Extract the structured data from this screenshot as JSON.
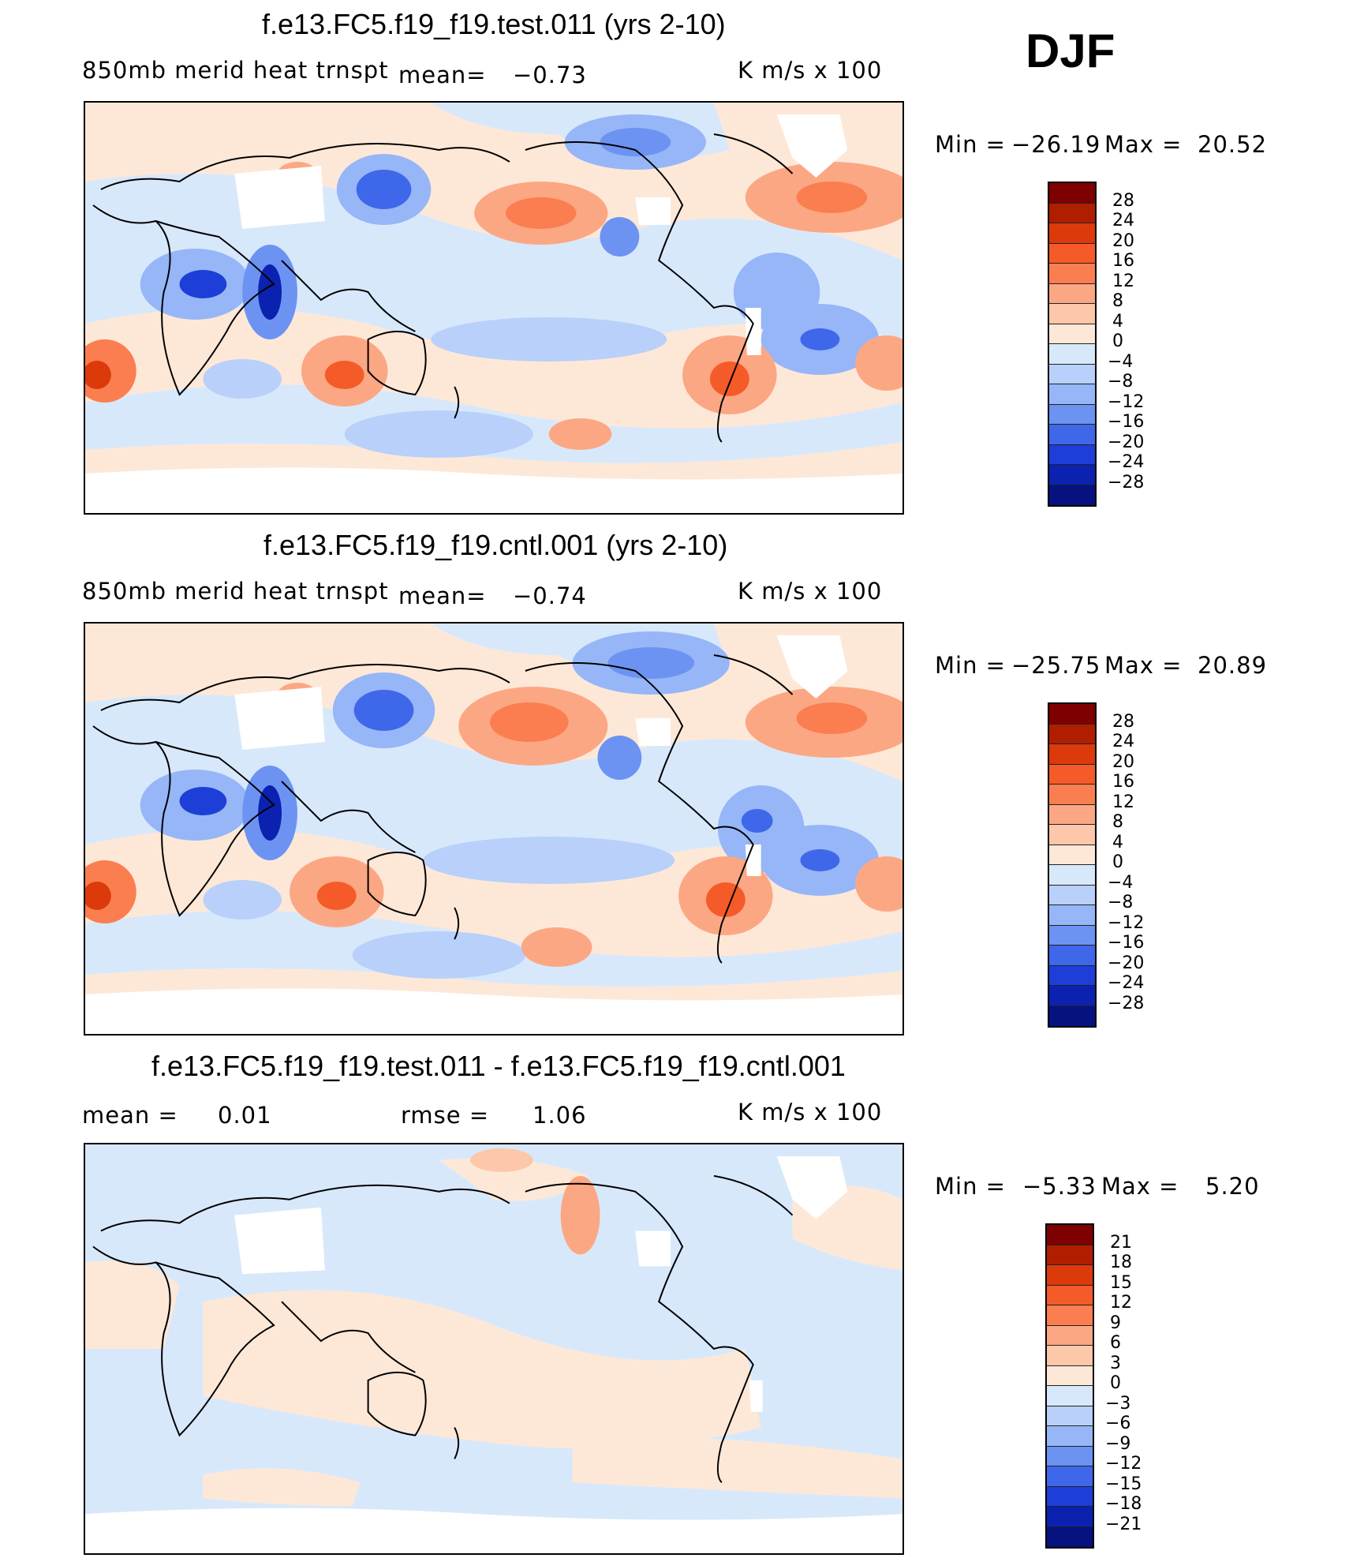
{
  "season": "DJF",
  "panels": [
    {
      "title": "f.e13.FC5.f19_f19.test.011 (yrs 2-10)",
      "left_label": "850mb merid heat trnspt",
      "mid_label": "mean=",
      "mid_value": "−0.73",
      "units": "K m/s x 100",
      "minmax_min_label": "Min =",
      "minmax_min": "−26.19",
      "minmax_max_label": "Max =",
      "minmax_max": "20.52",
      "colorbar_ticks": [
        "28",
        "24",
        "20",
        "16",
        "12",
        "8",
        "4",
        "0",
        "−4",
        "−8",
        "−12",
        "−16",
        "−20",
        "−24",
        "−28"
      ]
    },
    {
      "title": "f.e13.FC5.f19_f19.cntl.001 (yrs 2-10)",
      "left_label": "850mb merid heat trnspt",
      "mid_label": "mean=",
      "mid_value": "−0.74",
      "units": "K m/s x 100",
      "minmax_min_label": "Min =",
      "minmax_min": "−25.75",
      "minmax_max_label": "Max =",
      "minmax_max": "20.89",
      "colorbar_ticks": [
        "28",
        "24",
        "20",
        "16",
        "12",
        "8",
        "4",
        "0",
        "−4",
        "−8",
        "−12",
        "−16",
        "−20",
        "−24",
        "−28"
      ]
    },
    {
      "title": "f.e13.FC5.f19_f19.test.011 - f.e13.FC5.f19_f19.cntl.001",
      "left_label": "mean =",
      "left_value": "0.01",
      "mid_label": "rmse =",
      "mid_value": "1.06",
      "units": "K m/s x 100",
      "minmax_min_label": "Min =",
      "minmax_min": "−5.33",
      "minmax_max_label": "Max =",
      "minmax_max": "5.20",
      "colorbar_ticks": [
        "21",
        "18",
        "15",
        "12",
        "9",
        "6",
        "3",
        "0",
        "−3",
        "−6",
        "−9",
        "−12",
        "−15",
        "−18",
        "−21"
      ]
    }
  ],
  "colors": {
    "scale": [
      "#7f0000",
      "#b01e00",
      "#dc3a0a",
      "#f55b28",
      "#fb7e50",
      "#fca783",
      "#fdc7aa",
      "#fde8d8",
      "#d8e8fb",
      "#b8d0fa",
      "#96b6f7",
      "#6c93f2",
      "#3f67ea",
      "#1d3fd8",
      "#0b22b0",
      "#061280"
    ],
    "land_missing": "#ffffff",
    "coast": "#000000"
  }
}
